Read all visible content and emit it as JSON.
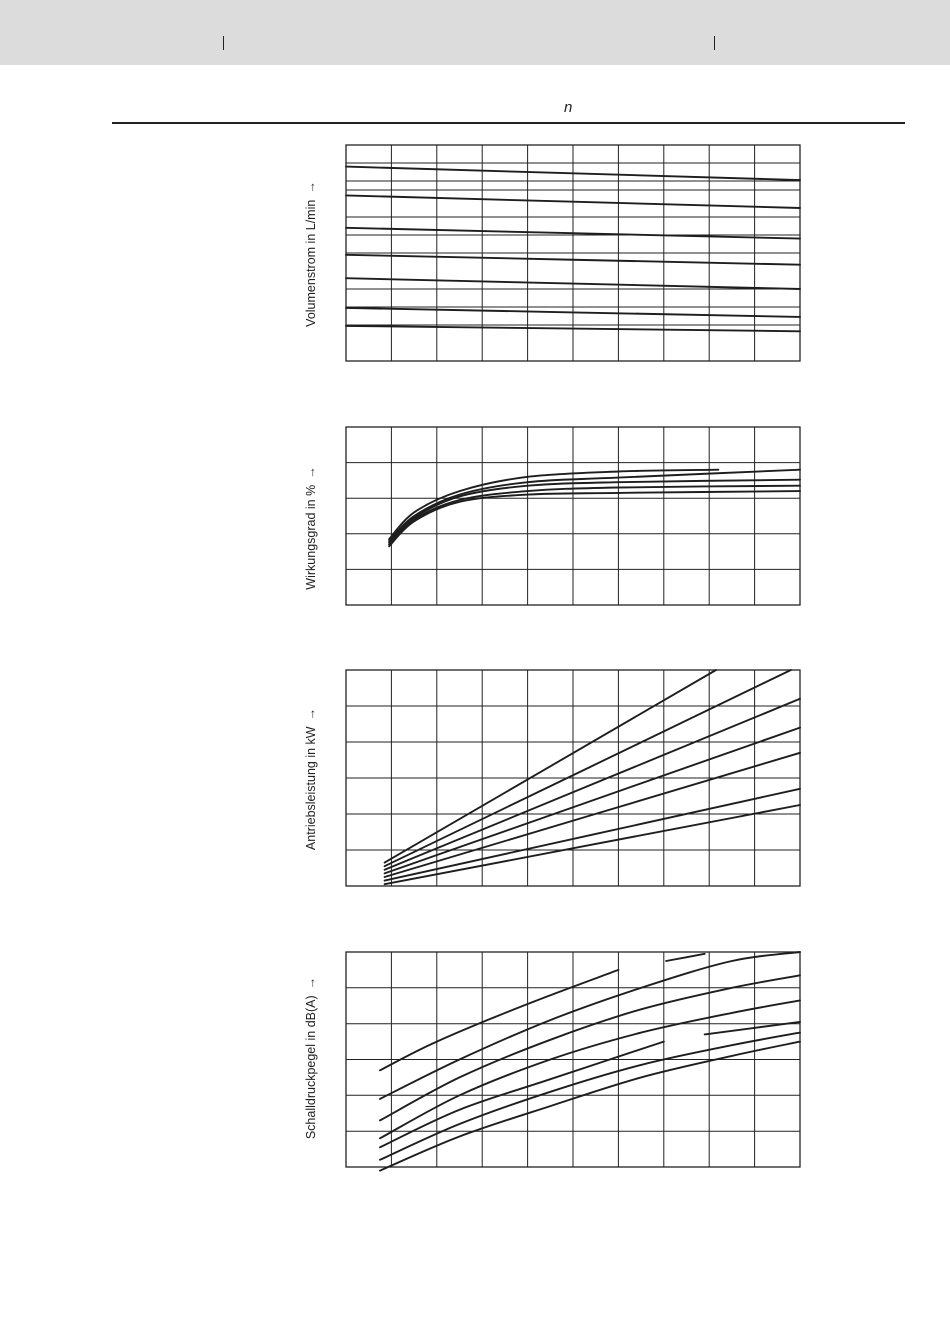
{
  "header": {
    "variable": "n"
  },
  "chart_data": [
    {
      "type": "line",
      "ylabel": "Volumenstrom in L/min",
      "ylabel_arrow": "→",
      "xlim": [
        0,
        10
      ],
      "ylim": [
        0,
        12
      ],
      "grid": {
        "x_divisions": 10,
        "y_values": [
          2,
          3,
          4,
          6,
          7,
          8,
          9.5,
          10,
          11,
          12
        ]
      },
      "series": [
        {
          "points": [
            [
              0,
              10.8
            ],
            [
              10,
              10.05
            ]
          ]
        },
        {
          "points": [
            [
              0,
              9.2
            ],
            [
              10,
              8.5
            ]
          ]
        },
        {
          "points": [
            [
              0,
              7.4
            ],
            [
              10,
              6.8
            ]
          ]
        },
        {
          "points": [
            [
              0,
              5.9
            ],
            [
              10,
              5.35
            ]
          ]
        },
        {
          "points": [
            [
              0,
              4.6
            ],
            [
              10,
              4.0
            ]
          ]
        },
        {
          "points": [
            [
              0,
              2.95
            ],
            [
              10,
              2.45
            ]
          ]
        },
        {
          "points": [
            [
              0,
              1.95
            ],
            [
              10,
              1.65
            ]
          ]
        }
      ]
    },
    {
      "type": "line",
      "ylabel": "Wirkungsgrad in %",
      "ylabel_arrow": "→",
      "xlim": [
        0,
        10
      ],
      "ylim": [
        0,
        5
      ],
      "grid": {
        "x_divisions": 10,
        "y_values": [
          1,
          2,
          3,
          4
        ]
      },
      "series": [
        {
          "points": [
            [
              0.95,
              1.85
            ],
            [
              1.5,
              2.6
            ],
            [
              2.5,
              3.2
            ],
            [
              4,
              3.6
            ],
            [
              6,
              3.75
            ],
            [
              8.2,
              3.8
            ]
          ]
        },
        {
          "points": [
            [
              0.95,
              1.8
            ],
            [
              1.5,
              2.5
            ],
            [
              2.5,
              3.1
            ],
            [
              4,
              3.45
            ],
            [
              6,
              3.58
            ],
            [
              10,
              3.8
            ]
          ]
        },
        {
          "points": [
            [
              0.95,
              1.75
            ],
            [
              1.5,
              2.45
            ],
            [
              2.5,
              3.05
            ],
            [
              4,
              3.35
            ],
            [
              6,
              3.45
            ],
            [
              10,
              3.52
            ]
          ]
        },
        {
          "points": [
            [
              0.95,
              1.7
            ],
            [
              1.5,
              2.4
            ],
            [
              2.5,
              2.95
            ],
            [
              4,
              3.2
            ],
            [
              6,
              3.3
            ],
            [
              10,
              3.35
            ]
          ]
        },
        {
          "points": [
            [
              0.95,
              1.65
            ],
            [
              1.5,
              2.35
            ],
            [
              2.5,
              2.9
            ],
            [
              4,
              3.1
            ],
            [
              6,
              3.15
            ],
            [
              10,
              3.2
            ]
          ]
        }
      ]
    },
    {
      "type": "line",
      "ylabel": "Antriebsleistung in kW",
      "ylabel_arrow": "→",
      "xlim": [
        0,
        10
      ],
      "ylim": [
        0,
        6
      ],
      "grid": {
        "x_divisions": 10,
        "y_values": [
          1,
          2,
          3,
          4,
          5
        ]
      },
      "series": [
        {
          "points": [
            [
              0.85,
              0.65
            ],
            [
              8.15,
              6.0
            ]
          ]
        },
        {
          "points": [
            [
              0.85,
              0.55
            ],
            [
              9.8,
              6.0
            ]
          ]
        },
        {
          "points": [
            [
              0.85,
              0.45
            ],
            [
              10,
              5.2
            ]
          ]
        },
        {
          "points": [
            [
              0.85,
              0.35
            ],
            [
              10,
              4.4
            ]
          ]
        },
        {
          "points": [
            [
              0.85,
              0.25
            ],
            [
              10,
              3.7
            ]
          ]
        },
        {
          "points": [
            [
              0.85,
              0.15
            ],
            [
              10,
              2.7
            ]
          ]
        },
        {
          "points": [
            [
              0.85,
              0.05
            ],
            [
              10,
              2.25
            ]
          ]
        }
      ]
    },
    {
      "type": "line",
      "ylabel": "Schalldruckpegel in dB(A)",
      "ylabel_arrow": "→",
      "xlim": [
        0,
        10
      ],
      "ylim": [
        0,
        6
      ],
      "grid": {
        "x_divisions": 10,
        "y_values": [
          1,
          2,
          3,
          4,
          5
        ]
      },
      "series": [
        {
          "points": [
            [
              0.75,
              2.7
            ],
            [
              2,
              3.5
            ],
            [
              4,
              4.55
            ],
            [
              6,
              5.5
            ]
          ]
        },
        {
          "points": [
            [
              7.05,
              5.75
            ],
            [
              7.9,
              5.95
            ]
          ]
        },
        {
          "points": [
            [
              0.75,
              1.9
            ],
            [
              2.5,
              3.0
            ],
            [
              4.5,
              4.1
            ],
            [
              6.5,
              5.0
            ],
            [
              8.5,
              5.75
            ],
            [
              10,
              6.0
            ]
          ]
        },
        {
          "points": [
            [
              0.75,
              1.3
            ],
            [
              2.5,
              2.5
            ],
            [
              4.5,
              3.55
            ],
            [
              6.5,
              4.4
            ],
            [
              8.5,
              5.0
            ],
            [
              10,
              5.35
            ]
          ]
        },
        {
          "points": [
            [
              0.75,
              0.8
            ],
            [
              2.5,
              2.0
            ],
            [
              4.5,
              3.0
            ],
            [
              6.5,
              3.75
            ],
            [
              8.5,
              4.3
            ],
            [
              10,
              4.65
            ]
          ]
        },
        {
          "points": [
            [
              0.75,
              0.55
            ],
            [
              2.5,
              1.6
            ],
            [
              4.5,
              2.45
            ],
            [
              7,
              3.5
            ]
          ]
        },
        {
          "points": [
            [
              0.75,
              0.2
            ],
            [
              2.5,
              1.2
            ],
            [
              4.5,
              2.1
            ],
            [
              6.5,
              2.85
            ],
            [
              8.5,
              3.4
            ],
            [
              10,
              3.75
            ]
          ]
        },
        {
          "points": [
            [
              7.9,
              3.7
            ],
            [
              10,
              4.05
            ]
          ]
        },
        {
          "points": [
            [
              0.75,
              -0.1
            ],
            [
              2.5,
              0.85
            ],
            [
              4.5,
              1.7
            ],
            [
              6.5,
              2.5
            ],
            [
              8.5,
              3.1
            ],
            [
              10,
              3.5
            ]
          ]
        }
      ]
    }
  ]
}
